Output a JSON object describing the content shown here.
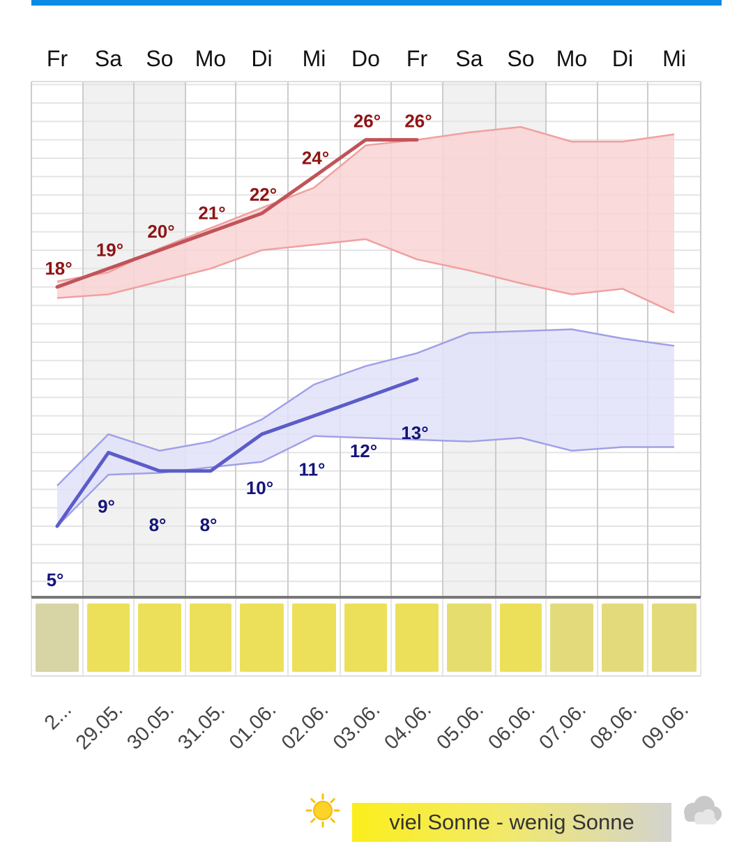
{
  "chart_data": {
    "type": "line",
    "categories": [
      "Fr",
      "Sa",
      "So",
      "Mo",
      "Di",
      "Mi",
      "Do",
      "Fr",
      "Sa",
      "So",
      "Mo",
      "Di",
      "Mi"
    ],
    "dates": [
      "2...",
      "29.05.",
      "30.05.",
      "31.05.",
      "01.06.",
      "02.06.",
      "03.06.",
      "04.06.",
      "05.06.",
      "06.06.",
      "07.06.",
      "08.06.",
      "09.06."
    ],
    "series": [
      {
        "values": [
          18,
          19,
          20,
          21,
          22,
          24,
          26,
          26,
          null,
          null,
          null,
          null,
          null
        ],
        "color": "#c0545a"
      },
      {
        "values": [
          5,
          9,
          8,
          8,
          10,
          11,
          12,
          13,
          null,
          null,
          null,
          null,
          null
        ],
        "color": "#5c5cc8"
      },
      {
        "values": [
          18.3,
          18.8,
          20.1,
          21.2,
          22.3,
          23.4,
          25.7,
          26.0,
          26.4,
          26.7,
          25.9,
          25.9,
          26.3
        ],
        "color": "#f0a0a0"
      },
      {
        "values": [
          17.4,
          17.6,
          18.3,
          19.0,
          20.0,
          20.3,
          20.6,
          19.5,
          18.9,
          18.2,
          17.6,
          17.9,
          16.6
        ],
        "color": "#f0a0a0"
      },
      {
        "values": [
          7.2,
          10.0,
          9.1,
          9.6,
          10.8,
          12.7,
          13.7,
          14.4,
          15.5,
          15.6,
          15.7,
          15.2,
          14.8
        ],
        "color": "#a0a0e8"
      },
      {
        "values": [
          5.0,
          7.8,
          7.9,
          8.2,
          8.5,
          9.9,
          9.8,
          9.7,
          9.6,
          9.8,
          9.1,
          9.3,
          9.3
        ],
        "color": "#a0a0e8"
      }
    ],
    "temperature_labels": {
      "max": [
        "18°",
        "19°",
        "20°",
        "21°",
        "22°",
        "24°",
        "26°",
        "26°"
      ],
      "min": [
        "5°",
        "9°",
        "8°",
        "8°",
        "10°",
        "11°",
        "12°",
        "13°"
      ]
    },
    "sunshine": [
      0.1,
      1.0,
      1.0,
      1.0,
      1.0,
      1.0,
      1.0,
      1.0,
      0.75,
      1.0,
      0.6,
      0.6,
      0.6
    ],
    "ylim": [
      -0.5,
      35
    ],
    "grid": true,
    "colors": {
      "max_line": "#c0545a",
      "max_band": "#f9d3d3",
      "max_band_edge": "#f0a0a0",
      "min_line": "#5c5cc8",
      "min_band": "#e2e2fa",
      "min_band_edge": "#a0a0e8",
      "max_label": "#8e1414",
      "min_label": "#14147a",
      "sun_full": "#ece05a",
      "sun_none": "#d5d3ad",
      "weekend": "#f1f1f1",
      "grid": "#cccccc",
      "accent_bar": "#0a8be6"
    }
  },
  "legend": {
    "text": "viel Sonne - wenig Sonne"
  },
  "icons": {
    "left": "sun-icon",
    "right": "cloud-icon"
  }
}
